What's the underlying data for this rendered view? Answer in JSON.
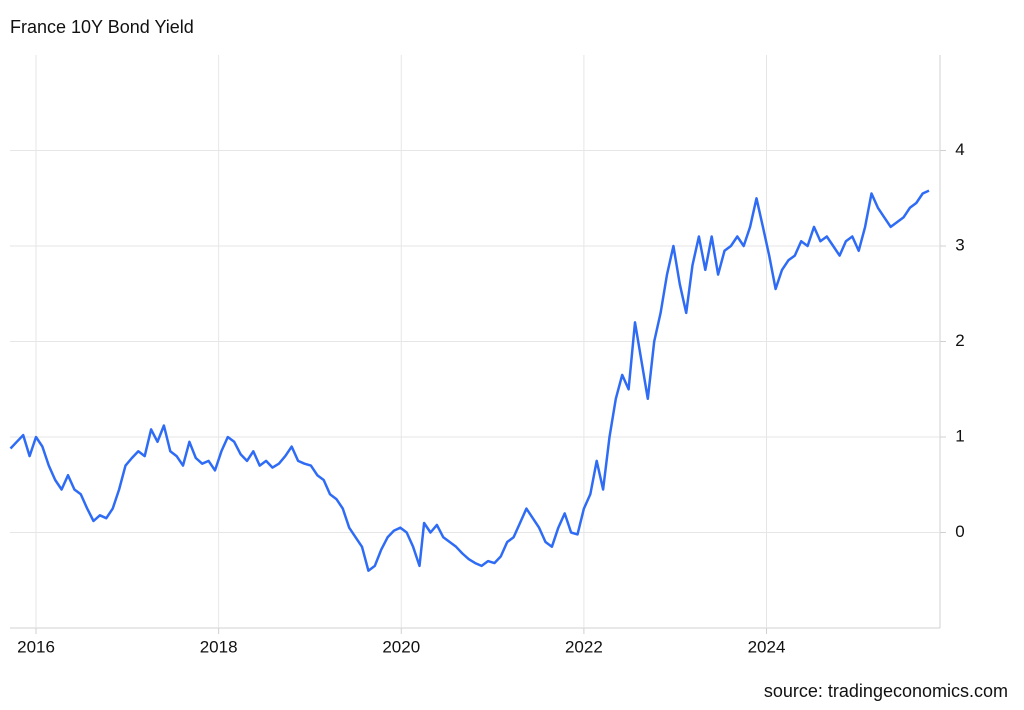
{
  "chart_data": {
    "type": "line",
    "title": "France 10Y Bond Yield",
    "source": "source: tradingeconomics.com",
    "x": [
      2015.72,
      2015.79,
      2015.86,
      2015.93,
      2016.0,
      2016.07,
      2016.14,
      2016.21,
      2016.28,
      2016.35,
      2016.42,
      2016.49,
      2016.56,
      2016.63,
      2016.7,
      2016.77,
      2016.84,
      2016.91,
      2016.98,
      2017.05,
      2017.12,
      2017.19,
      2017.26,
      2017.33,
      2017.4,
      2017.47,
      2017.54,
      2017.61,
      2017.68,
      2017.75,
      2017.82,
      2017.89,
      2017.96,
      2018.03,
      2018.1,
      2018.17,
      2018.24,
      2018.31,
      2018.38,
      2018.45,
      2018.52,
      2018.59,
      2018.66,
      2018.73,
      2018.8,
      2018.87,
      2018.94,
      2019.01,
      2019.08,
      2019.15,
      2019.22,
      2019.29,
      2019.36,
      2019.43,
      2019.5,
      2019.57,
      2019.64,
      2019.71,
      2019.78,
      2019.85,
      2019.92,
      2019.99,
      2020.06,
      2020.13,
      2020.2,
      2020.25,
      2020.32,
      2020.39,
      2020.46,
      2020.53,
      2020.6,
      2020.67,
      2020.74,
      2020.81,
      2020.88,
      2020.95,
      2021.02,
      2021.09,
      2021.16,
      2021.23,
      2021.3,
      2021.37,
      2021.44,
      2021.51,
      2021.58,
      2021.65,
      2021.72,
      2021.79,
      2021.86,
      2021.93,
      2022.0,
      2022.07,
      2022.14,
      2022.21,
      2022.28,
      2022.35,
      2022.42,
      2022.49,
      2022.56,
      2022.63,
      2022.7,
      2022.77,
      2022.84,
      2022.91,
      2022.98,
      2023.05,
      2023.12,
      2023.19,
      2023.26,
      2023.33,
      2023.4,
      2023.47,
      2023.54,
      2023.61,
      2023.68,
      2023.75,
      2023.82,
      2023.89,
      2023.96,
      2024.03,
      2024.1,
      2024.17,
      2024.24,
      2024.31,
      2024.38,
      2024.45,
      2024.52,
      2024.59,
      2024.66,
      2024.73,
      2024.8,
      2024.87,
      2024.94,
      2025.01,
      2025.08,
      2025.15,
      2025.22,
      2025.29,
      2025.36,
      2025.43,
      2025.5,
      2025.57,
      2025.64,
      2025.71,
      2025.78
    ],
    "series": [
      {
        "name": "France 10Y",
        "color": "#2f6cf6",
        "values": [
          0.88,
          0.95,
          1.02,
          0.8,
          1.0,
          0.9,
          0.7,
          0.55,
          0.45,
          0.6,
          0.45,
          0.4,
          0.25,
          0.12,
          0.18,
          0.15,
          0.25,
          0.45,
          0.7,
          0.78,
          0.85,
          0.8,
          1.08,
          0.95,
          1.12,
          0.85,
          0.8,
          0.7,
          0.95,
          0.78,
          0.72,
          0.75,
          0.65,
          0.85,
          1.0,
          0.95,
          0.82,
          0.75,
          0.85,
          0.7,
          0.75,
          0.68,
          0.72,
          0.8,
          0.9,
          0.75,
          0.72,
          0.7,
          0.6,
          0.55,
          0.4,
          0.35,
          0.25,
          0.05,
          -0.05,
          -0.15,
          -0.4,
          -0.35,
          -0.18,
          -0.05,
          0.02,
          0.05,
          0.0,
          -0.15,
          -0.35,
          0.1,
          0.0,
          0.08,
          -0.05,
          -0.1,
          -0.15,
          -0.22,
          -0.28,
          -0.32,
          -0.35,
          -0.3,
          -0.32,
          -0.25,
          -0.1,
          -0.05,
          0.1,
          0.25,
          0.15,
          0.05,
          -0.1,
          -0.15,
          0.05,
          0.2,
          0.0,
          -0.02,
          0.25,
          0.4,
          0.75,
          0.45,
          1.0,
          1.4,
          1.65,
          1.5,
          2.2,
          1.8,
          1.4,
          2.0,
          2.3,
          2.7,
          3.0,
          2.6,
          2.3,
          2.8,
          3.1,
          2.75,
          3.1,
          2.7,
          2.95,
          3.0,
          3.1,
          3.0,
          3.2,
          3.5,
          3.2,
          2.9,
          2.55,
          2.75,
          2.85,
          2.9,
          3.05,
          3.0,
          3.2,
          3.05,
          3.1,
          3.0,
          2.9,
          3.05,
          3.1,
          2.95,
          3.2,
          3.55,
          3.4,
          3.3,
          3.2,
          3.25,
          3.3,
          3.4,
          3.45,
          3.55,
          3.58
        ]
      }
    ],
    "xlim": [
      2015.715,
      2025.9
    ],
    "xticks": [
      2016,
      2018,
      2020,
      2022,
      2024
    ],
    "ylim": [
      -1,
      5
    ],
    "yticks": [
      0,
      1,
      2,
      3,
      4
    ],
    "grid": true
  }
}
